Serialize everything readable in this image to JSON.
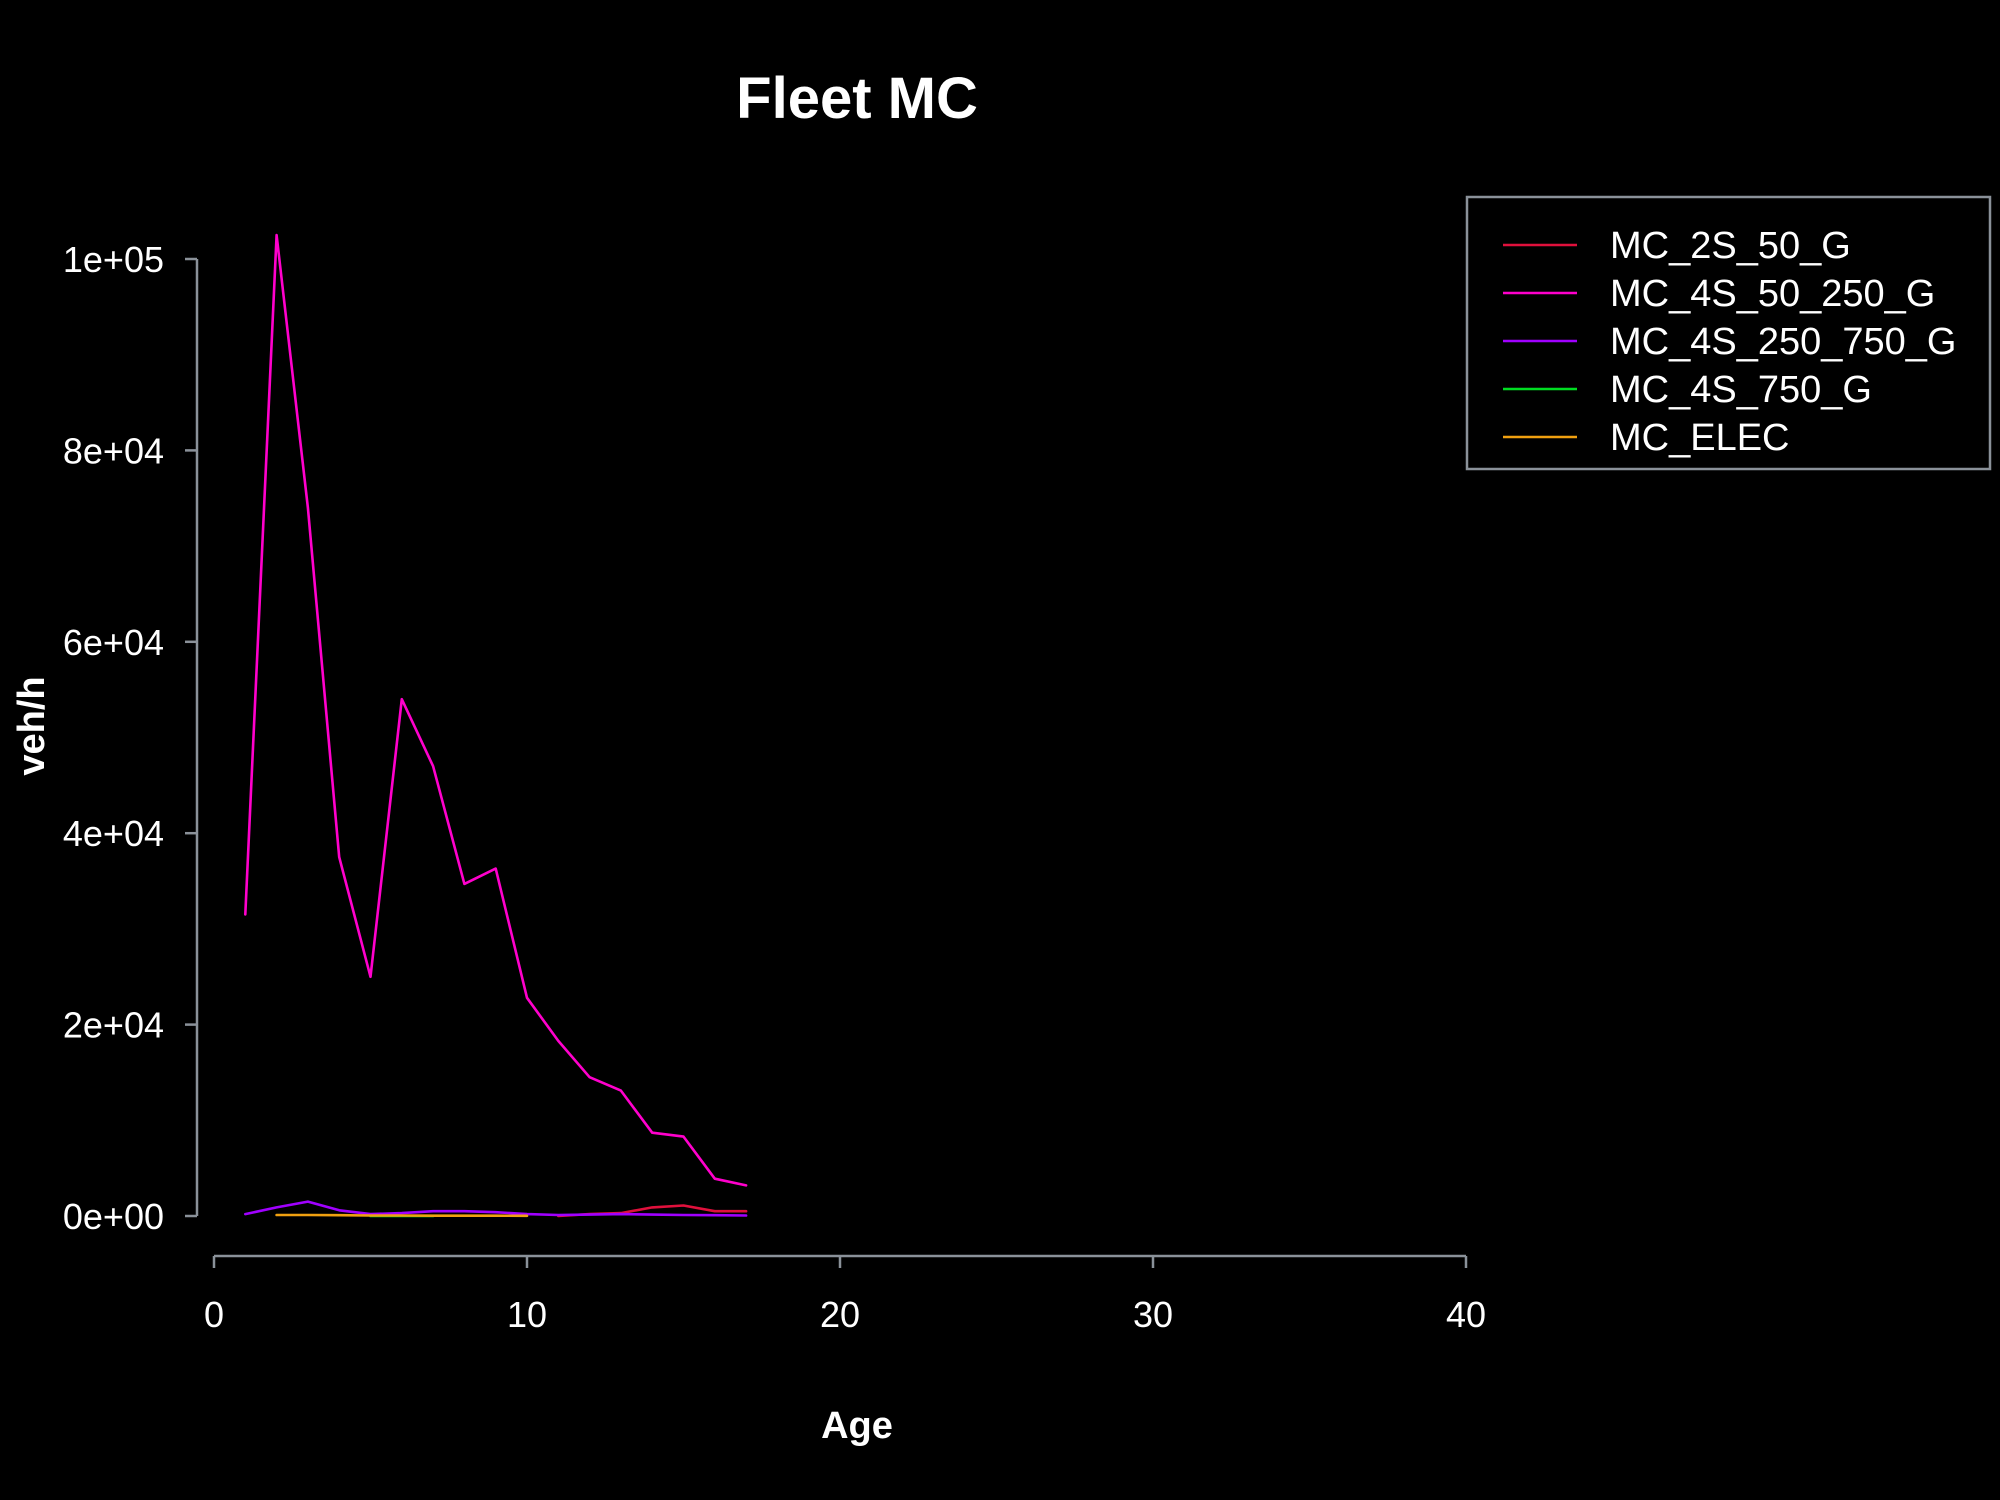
{
  "chart_data": {
    "type": "line",
    "title": "Fleet MC",
    "xlabel": "Age",
    "ylabel": "veh/h",
    "xlim": [
      0,
      40
    ],
    "ylim": [
      0,
      100000
    ],
    "x_ticks": [
      0,
      10,
      20,
      30,
      40
    ],
    "x_tick_labels": [
      "0",
      "10",
      "20",
      "30",
      "40"
    ],
    "y_ticks": [
      0,
      20000,
      40000,
      60000,
      80000,
      100000
    ],
    "y_tick_labels": [
      "0e+00",
      "2e+04",
      "4e+04",
      "6e+04",
      "8e+04",
      "1e+05"
    ],
    "grid": false,
    "legend_position": "top-right",
    "background": "#000000",
    "series": [
      {
        "name": "MC_2S_50_G",
        "color": "#e0103c",
        "points": [
          [
            11,
            0
          ],
          [
            12,
            200
          ],
          [
            13,
            300
          ],
          [
            14,
            900
          ],
          [
            15,
            1100
          ],
          [
            16,
            500
          ],
          [
            17,
            500
          ]
        ]
      },
      {
        "name": "MC_4S_50_250_G",
        "color": "#ff00cc",
        "points": [
          [
            1,
            31500
          ],
          [
            2,
            102500
          ],
          [
            3,
            74000
          ],
          [
            4,
            37500
          ],
          [
            5,
            25000
          ],
          [
            6,
            54000
          ],
          [
            7,
            47000
          ],
          [
            8,
            34700
          ],
          [
            9,
            36300
          ],
          [
            10,
            22800
          ],
          [
            11,
            18300
          ],
          [
            12,
            14500
          ],
          [
            13,
            13100
          ],
          [
            14,
            8700
          ],
          [
            15,
            8300
          ],
          [
            16,
            3900
          ],
          [
            17,
            3200
          ]
        ]
      },
      {
        "name": "MC_4S_250_750_G",
        "color": "#a000ff",
        "points": [
          [
            1,
            200
          ],
          [
            2,
            900
          ],
          [
            3,
            1500
          ],
          [
            4,
            600
          ],
          [
            5,
            200
          ],
          [
            6,
            300
          ],
          [
            7,
            500
          ],
          [
            8,
            500
          ],
          [
            9,
            400
          ],
          [
            10,
            200
          ],
          [
            11,
            100
          ],
          [
            12,
            150
          ],
          [
            13,
            200
          ],
          [
            14,
            150
          ],
          [
            15,
            100
          ],
          [
            16,
            80
          ],
          [
            17,
            50
          ]
        ]
      },
      {
        "name": "MC_4S_750_G",
        "color": "#00dd22",
        "points": [
          [
            5,
            0
          ],
          [
            6,
            0
          ],
          [
            7,
            0
          ]
        ]
      },
      {
        "name": "MC_ELEC",
        "color": "#f0a010",
        "points": [
          [
            2,
            100
          ],
          [
            3,
            100
          ],
          [
            4,
            80
          ],
          [
            5,
            50
          ],
          [
            6,
            50
          ],
          [
            7,
            30
          ],
          [
            8,
            30
          ],
          [
            9,
            30
          ],
          [
            10,
            20
          ]
        ]
      }
    ]
  }
}
